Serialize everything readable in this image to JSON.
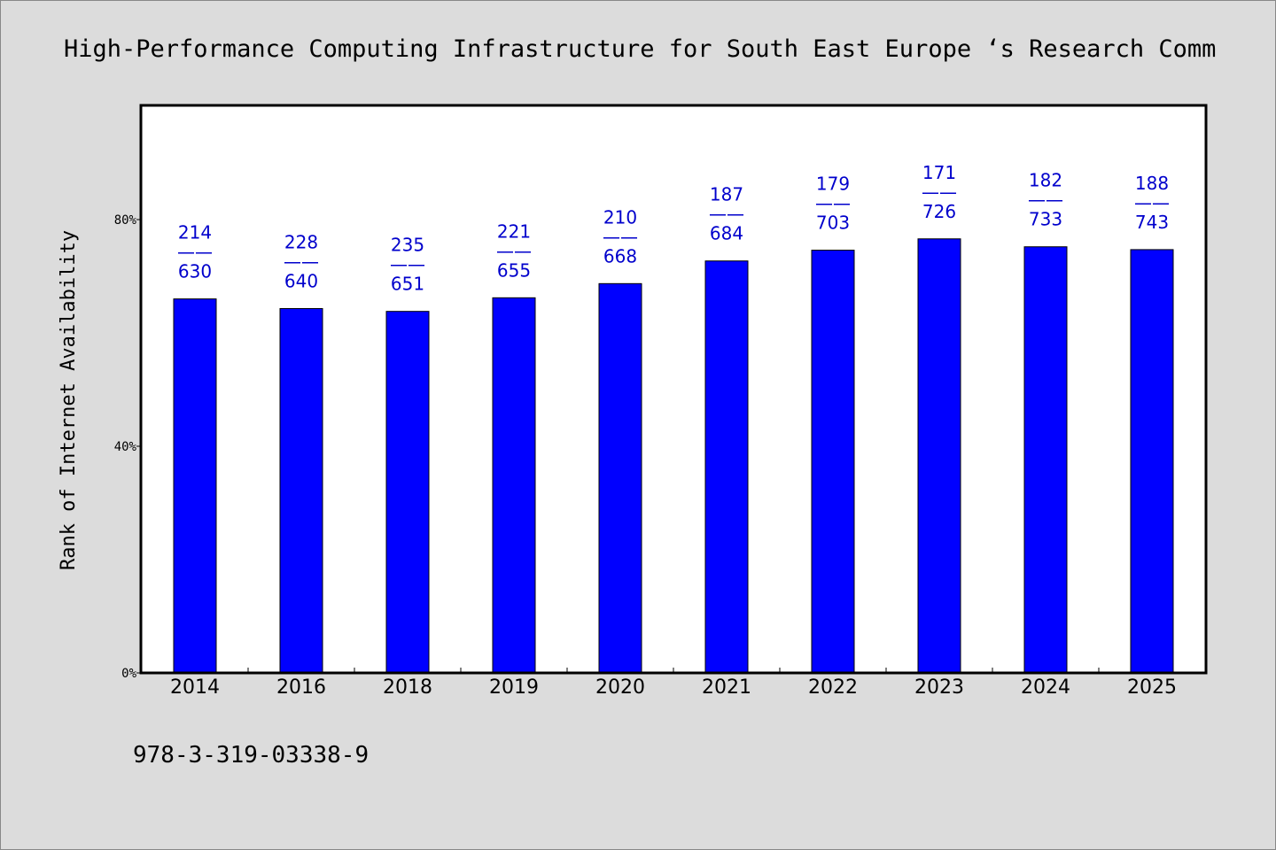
{
  "chart_data": {
    "type": "bar",
    "title": "High-Performance Computing Infrastructure for South East Europe ‘s Research Commu",
    "ylabel": "Rank of Internet Availability",
    "xlabel": "",
    "ylim": [
      0,
      100
    ],
    "yticks": [
      {
        "value": 0,
        "label": "0%"
      },
      {
        "value": 40,
        "label": "40%"
      },
      {
        "value": 80,
        "label": "80%"
      }
    ],
    "categories": [
      "2014",
      "2016",
      "2018",
      "2019",
      "2020",
      "2021",
      "2022",
      "2023",
      "2024",
      "2025"
    ],
    "values": [
      66.0,
      64.3,
      63.8,
      66.2,
      68.7,
      72.7,
      74.6,
      76.6,
      75.2,
      74.7
    ],
    "data_labels": [
      {
        "top": "214",
        "sep": "——",
        "bottom": "630"
      },
      {
        "top": "228",
        "sep": "——",
        "bottom": "640"
      },
      {
        "top": "235",
        "sep": "——",
        "bottom": "651"
      },
      {
        "top": "221",
        "sep": "——",
        "bottom": "655"
      },
      {
        "top": "210",
        "sep": "——",
        "bottom": "668"
      },
      {
        "top": "187",
        "sep": "——",
        "bottom": "684"
      },
      {
        "top": "179",
        "sep": "——",
        "bottom": "703"
      },
      {
        "top": "171",
        "sep": "——",
        "bottom": "726"
      },
      {
        "top": "182",
        "sep": "——",
        "bottom": "733"
      },
      {
        "top": "188",
        "sep": "——",
        "bottom": "743"
      }
    ],
    "bar_color": "#0000ff",
    "label_color": "#0000cc",
    "grid": false,
    "legend": "none"
  },
  "footnote": "978-3-319-03338-9"
}
